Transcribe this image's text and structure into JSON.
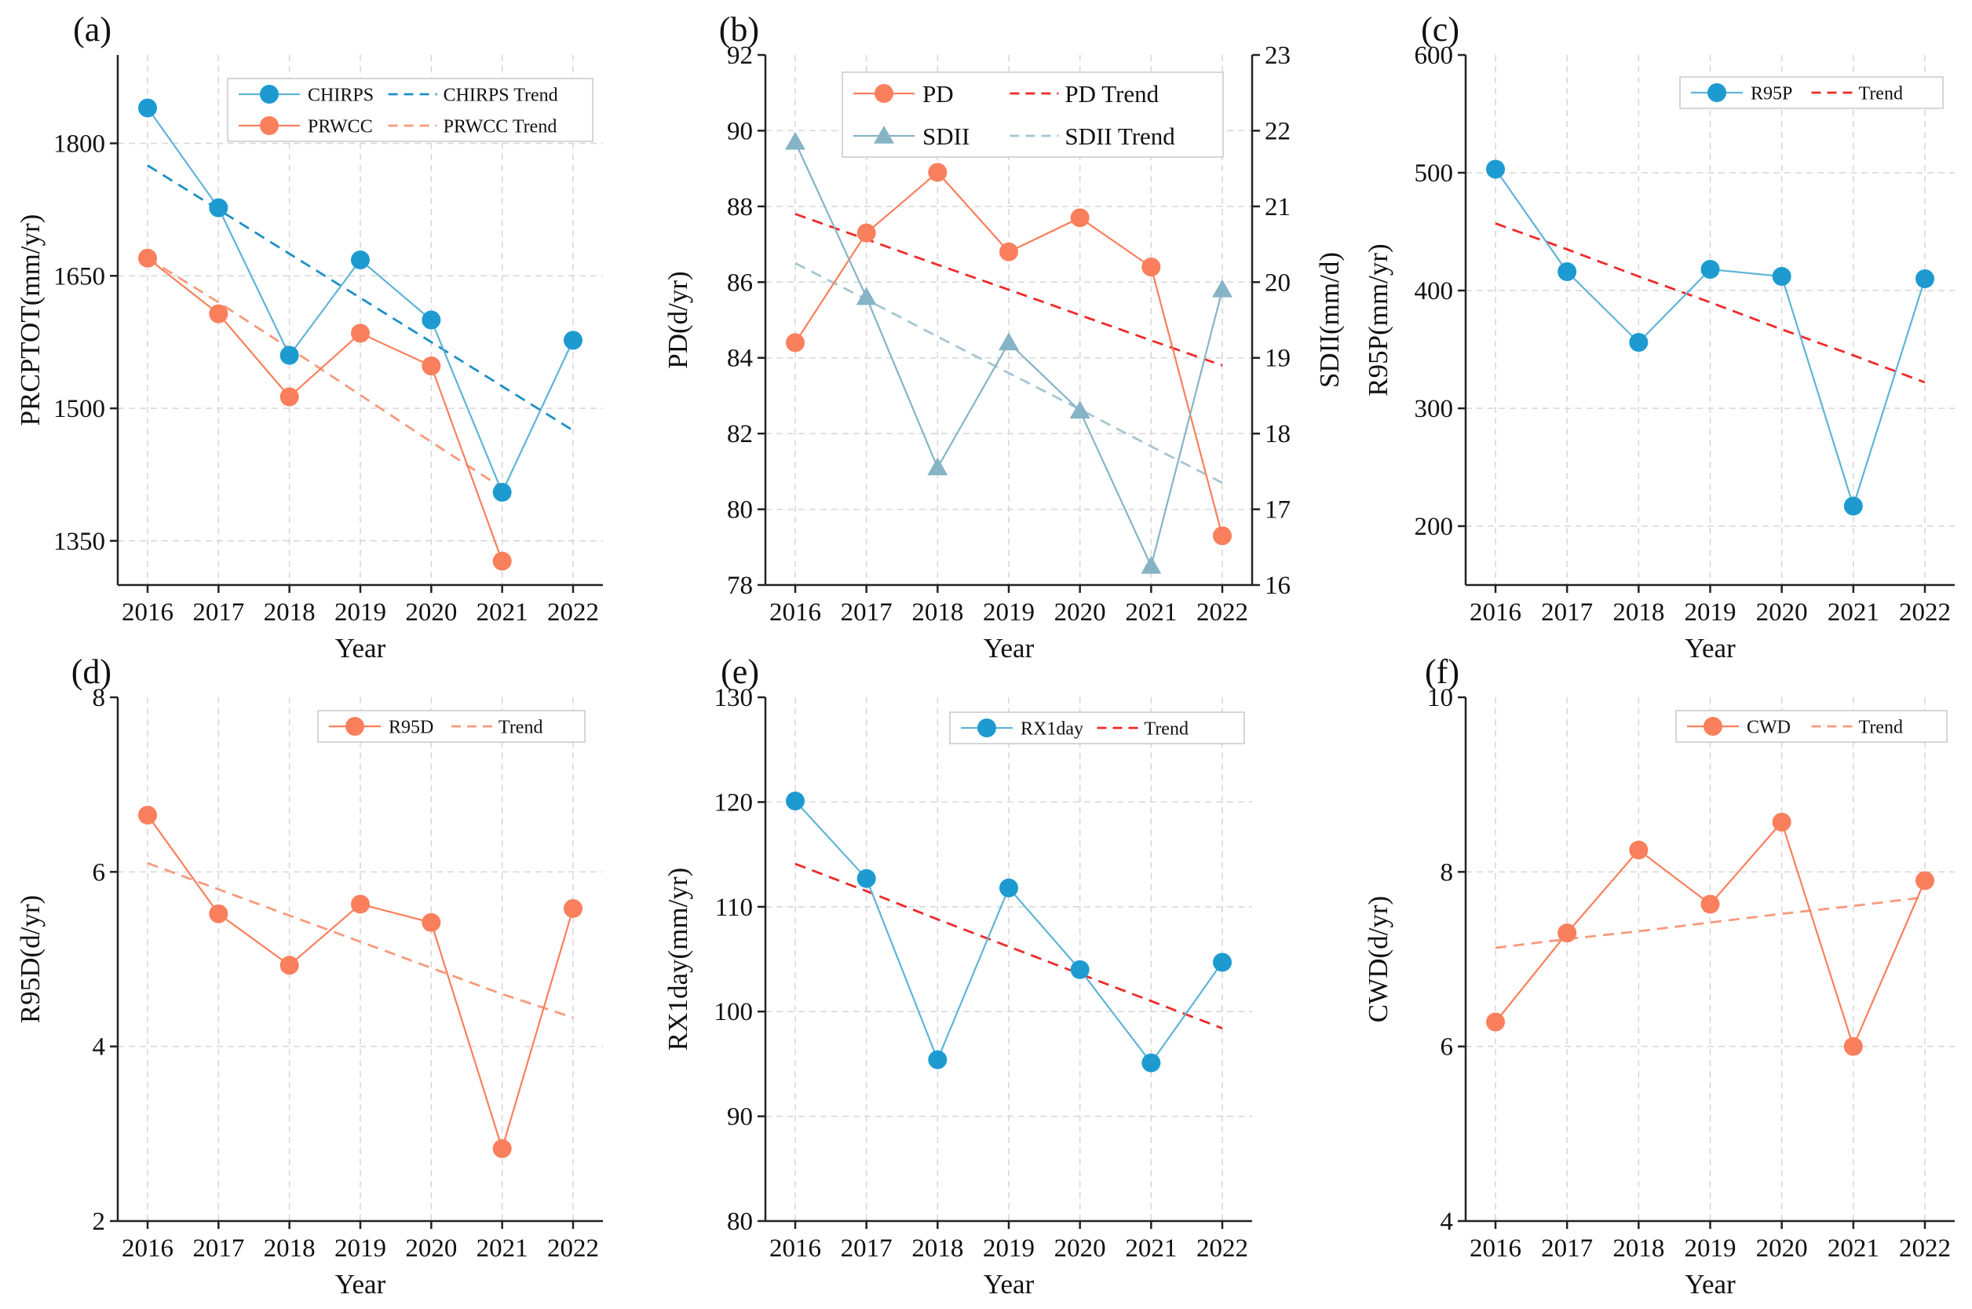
{
  "colors": {
    "blue": "#1d9bd1",
    "blue_line": "#5fb4d6",
    "blue_trend": "#1d8fc4",
    "orange": "#fa7f5c",
    "orange_trend": "#f79a7d",
    "gray_blue": "#86b4c6",
    "gray_blue_trend": "#a7c5d1",
    "red_trend": "#ee2a2a"
  },
  "chart_data": [
    {
      "panel": "(a)",
      "type": "line",
      "xlabel": "Year",
      "ylabel": "PRCPTOT(mm/yr)",
      "categories": [
        "2016",
        "2017",
        "2018",
        "2019",
        "2020",
        "2021",
        "2022"
      ],
      "ylim": [
        1300,
        1900
      ],
      "yticks": [
        1350,
        1500,
        1650,
        1800
      ],
      "series": [
        {
          "name": "CHIRPS",
          "values": [
            1840,
            1727,
            1560,
            1668,
            1600,
            1405,
            1577
          ],
          "color": "blue",
          "marker": "circle"
        },
        {
          "name": "PRWCC",
          "values": [
            1670,
            1607,
            1513,
            1585,
            1548,
            1327,
            null
          ],
          "color": "orange",
          "marker": "circle"
        }
      ],
      "trends": [
        {
          "name": "CHIRPS Trend",
          "values": [
            1775,
            1725,
            1675,
            1625,
            1575,
            1525,
            1475
          ],
          "color": "blue_trend"
        },
        {
          "name": "PRWCC Trend",
          "values": [
            1670,
            1620,
            1568,
            1515,
            1462,
            1410,
            null
          ],
          "color": "orange_trend"
        }
      ],
      "legend": [
        [
          "CHIRPS",
          "CHIRPS Trend"
        ],
        [
          "PRWCC",
          "PRWCC Trend"
        ]
      ]
    },
    {
      "panel": "(b)",
      "type": "line",
      "xlabel": "Year",
      "ylabel": "PD(d/yr)",
      "ylabel_right": "SDII(mm/d)",
      "categories": [
        "2016",
        "2017",
        "2018",
        "2019",
        "2020",
        "2021",
        "2022"
      ],
      "ylim": [
        78,
        92
      ],
      "yticks": [
        78,
        80,
        82,
        84,
        86,
        88,
        90,
        92
      ],
      "ylim_right": [
        16,
        23
      ],
      "yticks_right": [
        16,
        17,
        18,
        19,
        20,
        21,
        22,
        23
      ],
      "series": [
        {
          "name": "PD",
          "values": [
            84.4,
            87.3,
            88.9,
            86.8,
            87.7,
            86.4,
            79.3
          ],
          "color": "orange",
          "marker": "circle",
          "axis": "left"
        },
        {
          "name": "SDII",
          "values": [
            21.85,
            19.8,
            17.55,
            19.2,
            18.3,
            16.25,
            19.9
          ],
          "color": "gray_blue",
          "marker": "triangle",
          "axis": "right"
        }
      ],
      "trends": [
        {
          "name": "PD Trend",
          "values": [
            87.8,
            87.13,
            86.46,
            85.8,
            85.13,
            84.46,
            83.8
          ],
          "color": "red_trend",
          "axis": "left"
        },
        {
          "name": "SDII Trend",
          "values": [
            20.25,
            19.77,
            19.28,
            18.8,
            18.32,
            17.83,
            17.35
          ],
          "color": "gray_blue_trend",
          "axis": "right"
        }
      ],
      "legend": [
        [
          "PD",
          "PD Trend"
        ],
        [
          "SDII",
          "SDII Trend"
        ]
      ]
    },
    {
      "panel": "(c)",
      "type": "line",
      "xlabel": "Year",
      "ylabel": "R95P(mm/yr)",
      "categories": [
        "2016",
        "2017",
        "2018",
        "2019",
        "2020",
        "2021",
        "2022"
      ],
      "ylim": [
        150,
        600
      ],
      "yticks": [
        200,
        300,
        400,
        500,
        600
      ],
      "series": [
        {
          "name": "R95P",
          "values": [
            503,
            416,
            356,
            418,
            412,
            217,
            410
          ],
          "color": "blue",
          "marker": "circle"
        }
      ],
      "trends": [
        {
          "name": "Trend",
          "values": [
            457,
            435,
            412,
            390,
            367,
            345,
            322
          ],
          "color": "red_trend"
        }
      ],
      "legend": [
        [
          "R95P",
          "Trend"
        ]
      ]
    },
    {
      "panel": "(d)",
      "type": "line",
      "xlabel": "Year",
      "ylabel": "R95D(d/yr)",
      "categories": [
        "2016",
        "2017",
        "2018",
        "2019",
        "2020",
        "2021",
        "2022"
      ],
      "ylim": [
        2,
        8
      ],
      "yticks": [
        2,
        4,
        6,
        8
      ],
      "series": [
        {
          "name": "R95D",
          "values": [
            6.65,
            5.52,
            4.93,
            5.63,
            5.42,
            2.83,
            5.58
          ],
          "color": "orange",
          "marker": "circle"
        }
      ],
      "trends": [
        {
          "name": "Trend",
          "values": [
            6.1,
            5.8,
            5.5,
            5.2,
            4.9,
            4.6,
            4.33
          ],
          "color": "orange_trend"
        }
      ],
      "legend": [
        [
          "R95D",
          "Trend"
        ]
      ]
    },
    {
      "panel": "(e)",
      "type": "line",
      "xlabel": "Year",
      "ylabel": "RX1day(mm/yr)",
      "categories": [
        "2016",
        "2017",
        "2018",
        "2019",
        "2020",
        "2021",
        "2022"
      ],
      "ylim": [
        80,
        130
      ],
      "yticks": [
        80,
        90,
        100,
        110,
        120,
        130
      ],
      "series": [
        {
          "name": "RX1day",
          "values": [
            120.1,
            112.7,
            95.4,
            111.8,
            104,
            95.1,
            104.7
          ],
          "color": "blue",
          "marker": "circle"
        }
      ],
      "trends": [
        {
          "name": "Trend",
          "values": [
            114.1,
            111.5,
            108.8,
            106.2,
            103.6,
            101,
            98.4
          ],
          "color": "red_trend"
        }
      ],
      "legend": [
        [
          "RX1day",
          "Trend"
        ]
      ]
    },
    {
      "panel": "(f)",
      "type": "line",
      "xlabel": "Year",
      "ylabel": "CWD(d/yr)",
      "categories": [
        "2016",
        "2017",
        "2018",
        "2019",
        "2020",
        "2021",
        "2022"
      ],
      "ylim": [
        4,
        10
      ],
      "yticks": [
        4,
        6,
        8,
        10
      ],
      "series": [
        {
          "name": "CWD",
          "values": [
            6.28,
            7.3,
            8.25,
            7.63,
            8.57,
            6.0,
            7.9
          ],
          "color": "orange",
          "marker": "circle"
        }
      ],
      "trends": [
        {
          "name": "Trend",
          "values": [
            7.13,
            7.23,
            7.32,
            7.42,
            7.52,
            7.61,
            7.71
          ],
          "color": "orange_trend"
        }
      ],
      "legend": [
        [
          "CWD",
          "Trend"
        ]
      ]
    }
  ]
}
